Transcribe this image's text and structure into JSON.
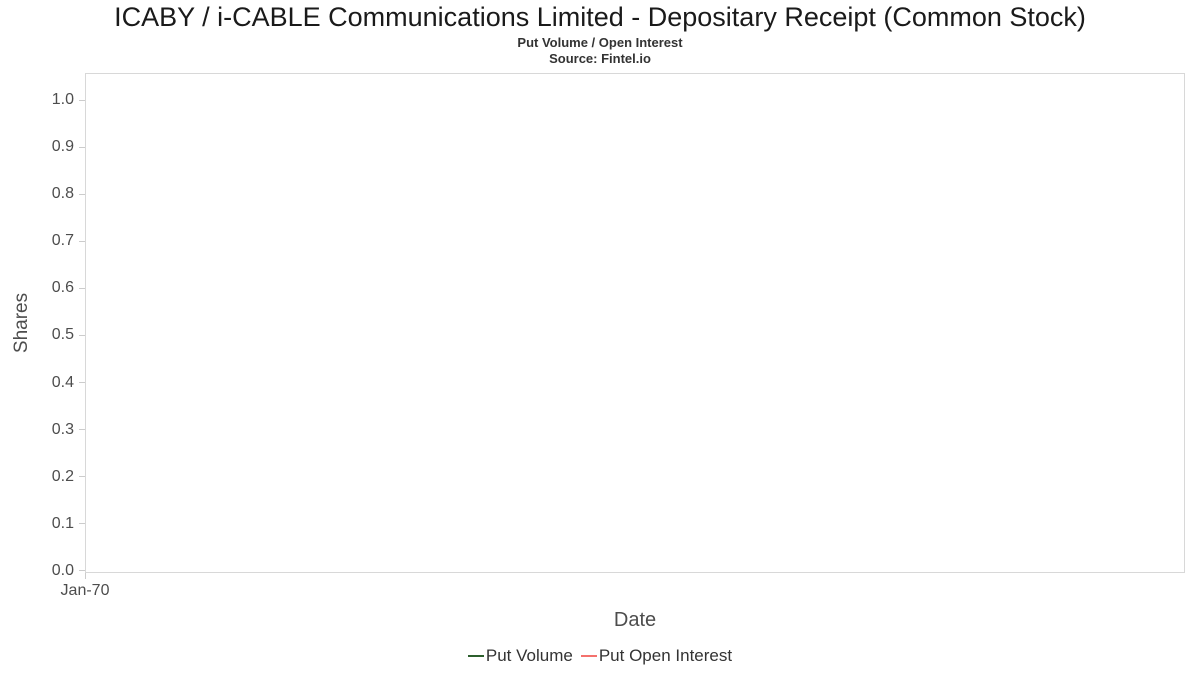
{
  "chart_data": {
    "type": "line",
    "title": "ICABY / i-CABLE Communications Limited - Depositary Receipt (Common Stock)",
    "subtitle": "Put Volume / Open Interest",
    "source": "Source: Fintel.io",
    "xlabel": "Date",
    "ylabel": "Shares",
    "x_ticks": [
      "Jan-70"
    ],
    "y_ticks": [
      "1.0",
      "0.9",
      "0.8",
      "0.7",
      "0.6",
      "0.5",
      "0.4",
      "0.3",
      "0.2",
      "0.1",
      "0.0"
    ],
    "ylim": [
      0.0,
      1.0
    ],
    "grid": false,
    "legend_position": "bottom",
    "series": [
      {
        "name": "Put Volume",
        "color": "#2c5f2d",
        "values": []
      },
      {
        "name": "Put Open Interest",
        "color": "#f4716d",
        "values": []
      }
    ]
  }
}
